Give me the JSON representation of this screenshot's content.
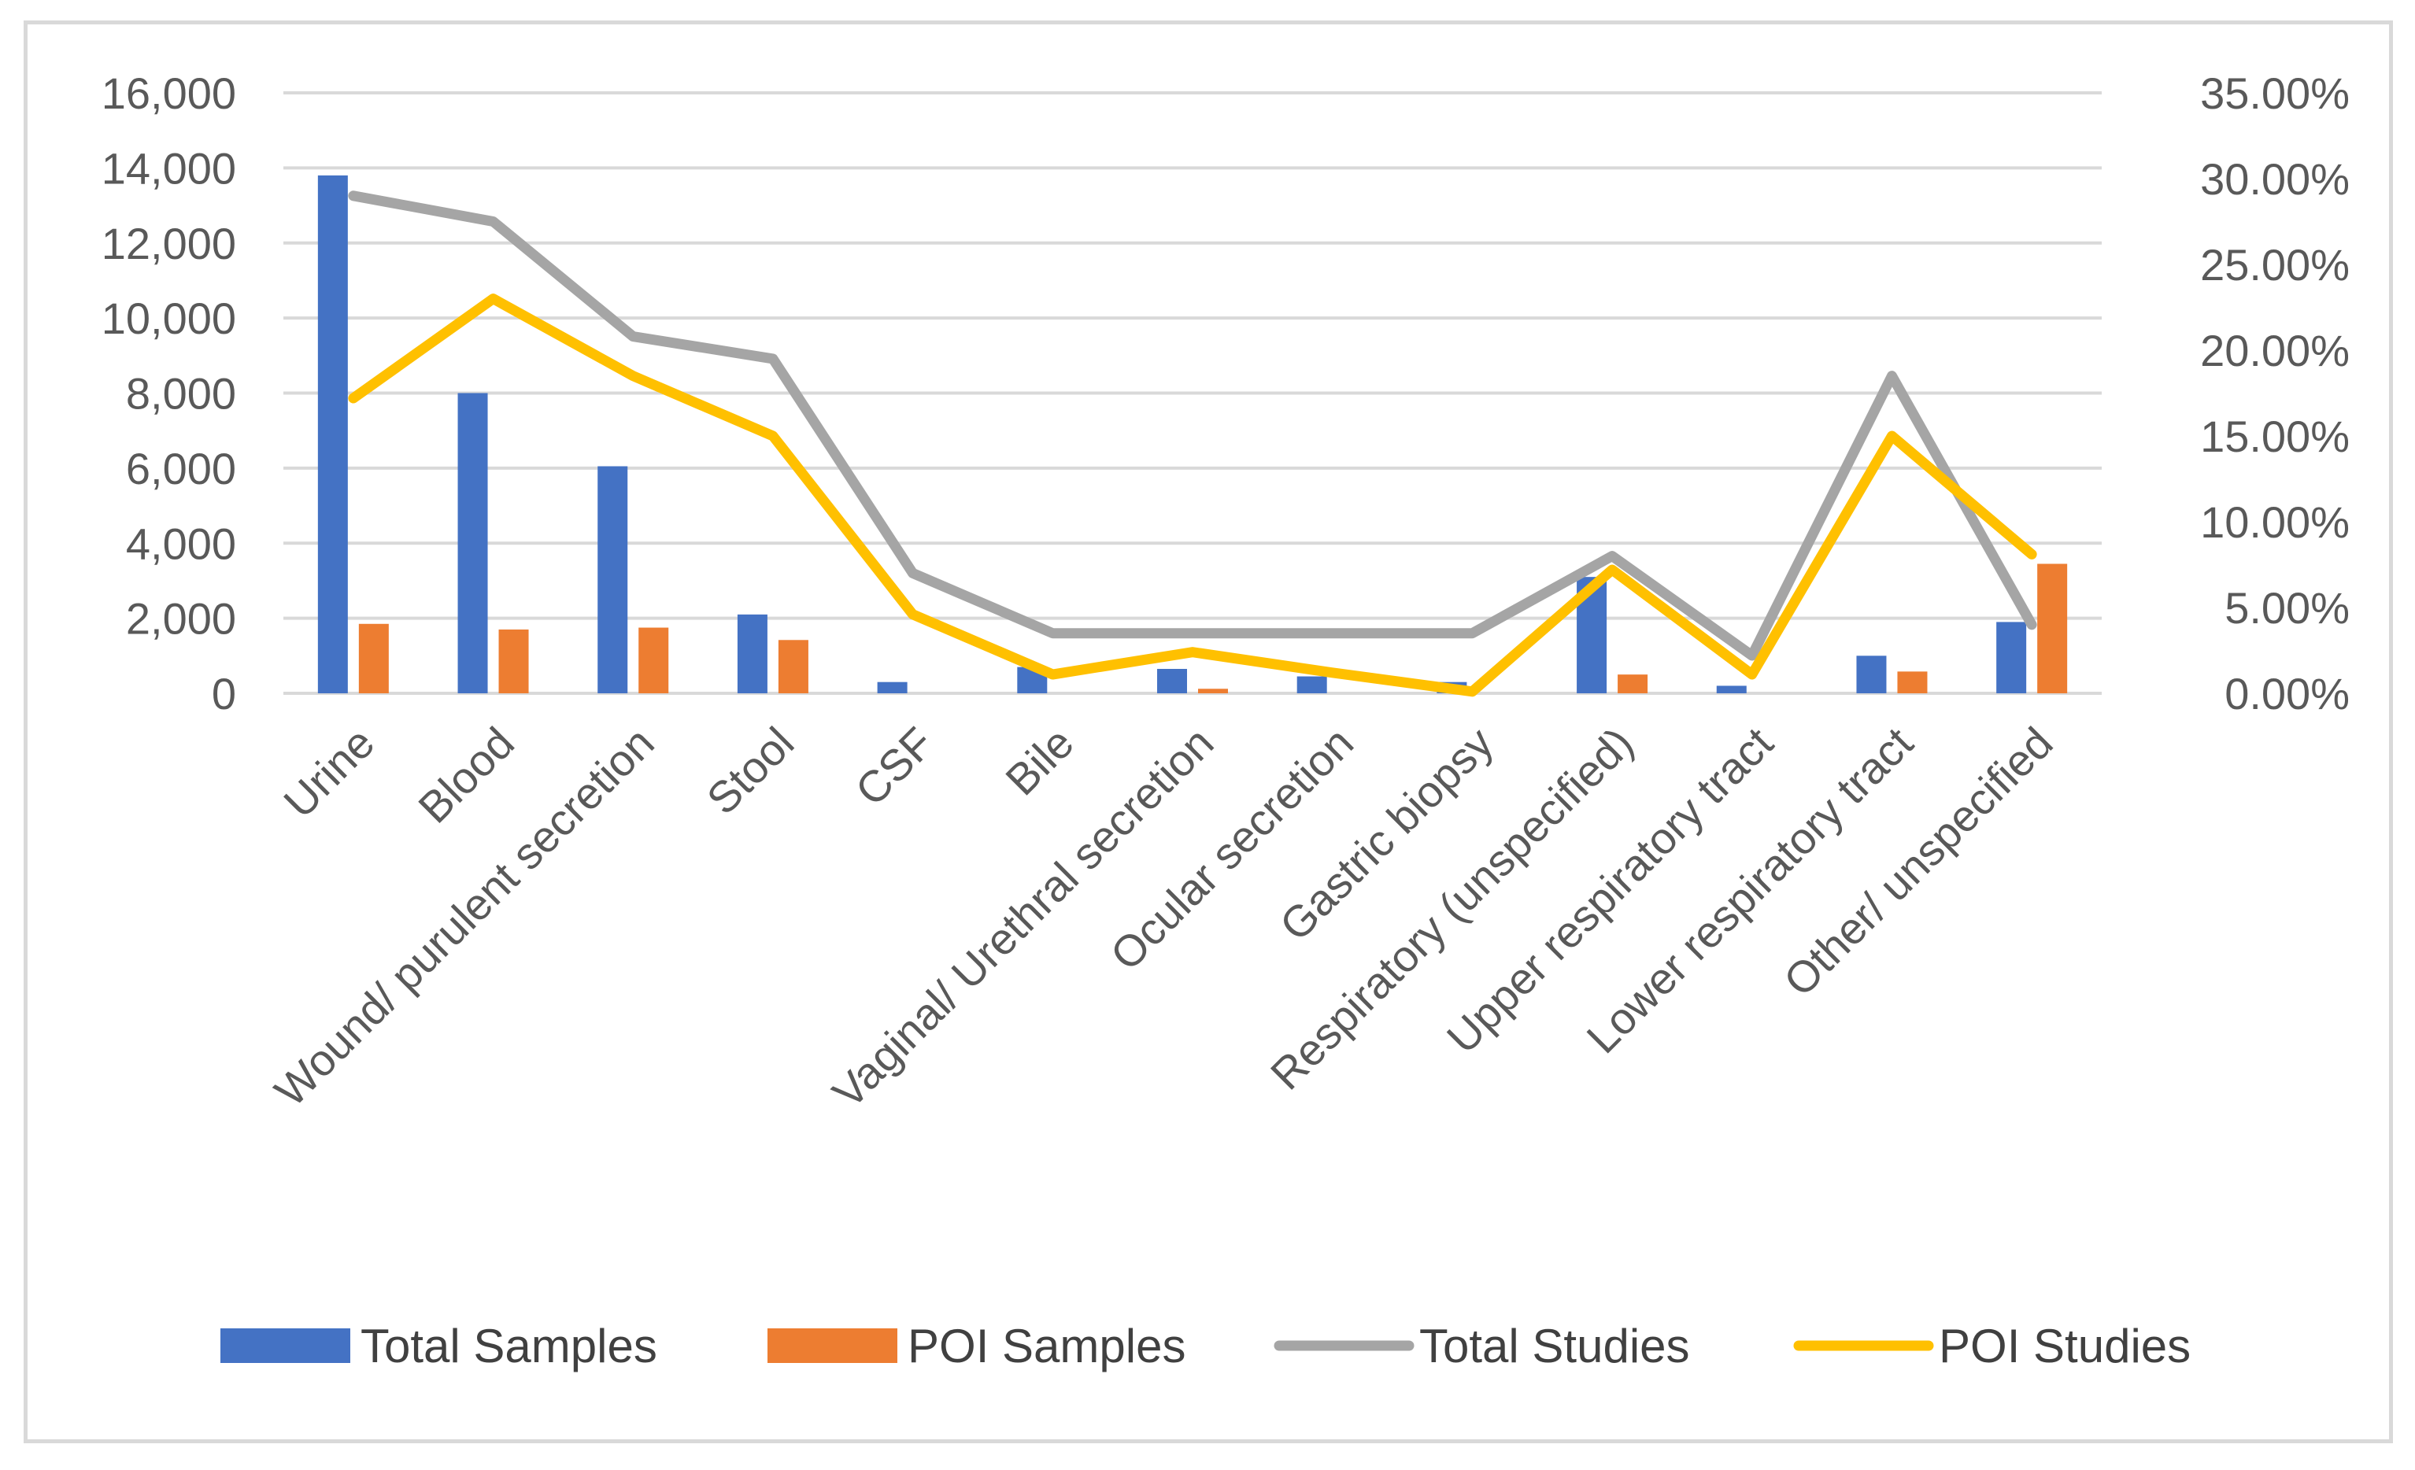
{
  "chart_data": {
    "type": "bar",
    "title": "",
    "categories": [
      "Urine",
      "Blood",
      "Wound/ purulent secretion",
      "Stool",
      "CSF",
      "Bile",
      "Vaginal/ Urethral secretion",
      "Ocular secretion",
      "Gastric biopsy",
      "Respiratory (unspecified)",
      "Upper respiratory tract",
      "Lower respiratory tract",
      "Other/ unspecified"
    ],
    "series": [
      {
        "name": "Total Samples",
        "kind": "bar",
        "axis": "left",
        "color": "#4472c4",
        "values": [
          13800,
          8000,
          6050,
          2100,
          300,
          700,
          650,
          450,
          300,
          3100,
          200,
          1000,
          1900
        ]
      },
      {
        "name": "POI Samples",
        "kind": "bar",
        "axis": "left",
        "color": "#ed7d31",
        "values": [
          1850,
          1700,
          1750,
          1420,
          0,
          0,
          120,
          0,
          0,
          500,
          0,
          580,
          3450
        ]
      },
      {
        "name": "Total Studies",
        "kind": "line",
        "axis": "right",
        "color": "#a5a5a5",
        "values": [
          0.29,
          0.275,
          0.208,
          0.195,
          0.07,
          0.035,
          0.035,
          0.035,
          0.035,
          0.08,
          0.022,
          0.185,
          0.04
        ]
      },
      {
        "name": "POI Studies",
        "kind": "line",
        "axis": "right",
        "color": "#ffc000",
        "values": [
          0.172,
          0.23,
          0.185,
          0.15,
          0.046,
          0.011,
          0.024,
          0.012,
          0.001,
          0.072,
          0.011,
          0.15,
          0.081
        ]
      }
    ],
    "left_axis": {
      "min": 0,
      "max": 16000,
      "ticks": [
        "0",
        "2,000",
        "4,000",
        "6,000",
        "8,000",
        "10,000",
        "12,000",
        "14,000",
        "16,000"
      ]
    },
    "right_axis": {
      "min": 0,
      "max": 0.35,
      "ticks": [
        "0.00%",
        "5.00%",
        "10.00%",
        "15.00%",
        "20.00%",
        "25.00%",
        "30.00%",
        "35.00%"
      ]
    },
    "xlabel": "",
    "ylabel": "",
    "ylim": [
      0,
      16000
    ],
    "y2lim": [
      0,
      0.35
    ],
    "grid": true,
    "legend_position": "bottom"
  }
}
